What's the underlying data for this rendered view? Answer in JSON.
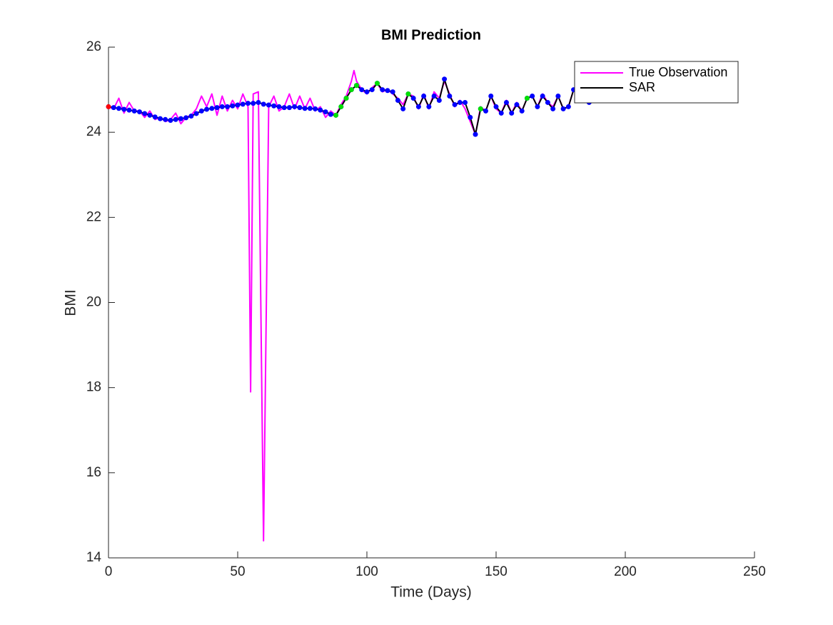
{
  "chart_data": {
    "type": "line",
    "title": "BMI Prediction",
    "x_label": "Time (Days)",
    "y_label": "BMI",
    "xlim": [
      0,
      250
    ],
    "xticks": [
      0,
      50,
      100,
      150,
      200,
      250
    ],
    "ylim": [
      14,
      26
    ],
    "yticks": [
      14,
      16,
      18,
      20,
      22,
      24,
      26
    ],
    "legend": "northeast",
    "grid": false,
    "series": [
      {
        "name": "True Observation",
        "color": "#ff00ff",
        "x": [
          0,
          2,
          4,
          6,
          8,
          10,
          12,
          14,
          16,
          18,
          20,
          22,
          24,
          26,
          28,
          30,
          32,
          34,
          36,
          38,
          40,
          42,
          44,
          46,
          48,
          50,
          52,
          54,
          55,
          56,
          58,
          60,
          62,
          64,
          66,
          68,
          70,
          72,
          74,
          76,
          78,
          80,
          82,
          84,
          86,
          88,
          90,
          92,
          94,
          95,
          96,
          98,
          100,
          102,
          104,
          106,
          108,
          110,
          112,
          114,
          116,
          118,
          120,
          122,
          124,
          126,
          128,
          130,
          132,
          134,
          136,
          138,
          140,
          142,
          144,
          146,
          148,
          150,
          152,
          154,
          156,
          158,
          160,
          162,
          164,
          166,
          168,
          170,
          172,
          174,
          176,
          178,
          180,
          182,
          184,
          186,
          188,
          190,
          192,
          194,
          196,
          198,
          200,
          202
        ],
        "values": [
          24.6,
          24.55,
          24.8,
          24.45,
          24.7,
          24.5,
          24.5,
          24.35,
          24.5,
          24.3,
          24.35,
          24.25,
          24.3,
          24.45,
          24.2,
          24.35,
          24.4,
          24.55,
          24.85,
          24.6,
          24.9,
          24.4,
          24.85,
          24.5,
          24.75,
          24.55,
          24.9,
          24.6,
          17.9,
          24.9,
          24.95,
          14.4,
          24.6,
          24.85,
          24.5,
          24.6,
          24.9,
          24.55,
          24.85,
          24.55,
          24.8,
          24.5,
          24.6,
          24.35,
          24.5,
          24.4,
          24.65,
          24.85,
          25.2,
          25.45,
          25.2,
          25.0,
          24.9,
          25.05,
          25.15,
          24.95,
          25.0,
          24.9,
          24.8,
          24.65,
          24.9,
          24.85,
          24.55,
          24.9,
          24.55,
          24.95,
          24.8,
          25.2,
          24.9,
          24.6,
          24.75,
          24.55,
          24.25,
          23.95,
          24.6,
          24.5,
          24.85,
          24.55,
          24.45,
          24.75,
          24.45,
          24.7,
          24.5,
          24.8,
          24.85,
          24.6,
          24.9,
          24.7,
          24.6,
          24.85,
          24.55,
          24.6,
          25.0,
          25.05,
          24.85,
          24.75,
          24.9,
          24.8,
          24.95,
          24.75,
          24.85,
          24.8,
          24.85,
          24.8
        ]
      },
      {
        "name": "SAR",
        "color": "#000000",
        "marker_color": "#0000ff",
        "x": [
          0,
          2,
          4,
          6,
          8,
          10,
          12,
          14,
          16,
          18,
          20,
          22,
          24,
          26,
          28,
          30,
          32,
          34,
          36,
          38,
          40,
          42,
          44,
          46,
          48,
          50,
          52,
          54,
          56,
          58,
          60,
          62,
          64,
          66,
          68,
          70,
          72,
          74,
          76,
          78,
          80,
          82,
          84,
          86,
          88,
          90,
          92,
          94,
          96,
          98,
          100,
          102,
          104,
          106,
          108,
          110,
          112,
          114,
          116,
          118,
          120,
          122,
          124,
          126,
          128,
          130,
          132,
          134,
          136,
          138,
          140,
          142,
          144,
          146,
          148,
          150,
          152,
          154,
          156,
          158,
          160,
          162,
          164,
          166,
          168,
          170,
          172,
          174,
          176,
          178,
          180,
          182,
          184,
          186,
          188,
          190,
          192,
          194,
          196,
          198,
          200,
          202
        ],
        "values": [
          24.6,
          24.58,
          24.56,
          24.54,
          24.52,
          24.5,
          24.48,
          24.44,
          24.4,
          24.36,
          24.32,
          24.3,
          24.28,
          24.3,
          24.32,
          24.34,
          24.38,
          24.44,
          24.5,
          24.54,
          24.56,
          24.58,
          24.6,
          24.6,
          24.62,
          24.64,
          24.66,
          24.68,
          24.68,
          24.7,
          24.66,
          24.64,
          24.62,
          24.6,
          24.58,
          24.58,
          24.6,
          24.58,
          24.56,
          24.56,
          24.55,
          24.52,
          24.48,
          24.42,
          24.4,
          24.6,
          24.8,
          25.0,
          25.1,
          25.0,
          24.95,
          25.0,
          25.15,
          25.0,
          24.98,
          24.95,
          24.75,
          24.55,
          24.9,
          24.8,
          24.6,
          24.85,
          24.6,
          24.85,
          24.75,
          25.25,
          24.85,
          24.65,
          24.7,
          24.7,
          24.35,
          23.95,
          24.55,
          24.5,
          24.85,
          24.6,
          24.45,
          24.7,
          24.45,
          24.65,
          24.5,
          24.8,
          24.85,
          24.6,
          24.85,
          24.7,
          24.55,
          24.85,
          24.55,
          24.6,
          25.0,
          25.05,
          24.8,
          24.7,
          24.9,
          24.8,
          24.95,
          24.75,
          24.85,
          24.8,
          24.75,
          24.8
        ]
      },
      {
        "color": "#00e000",
        "style": "markers",
        "x": [
          88,
          90,
          92,
          94,
          96,
          104,
          116,
          144,
          162
        ],
        "values": [
          24.4,
          24.6,
          24.8,
          25.0,
          25.1,
          25.15,
          24.9,
          24.55,
          24.8
        ]
      },
      {
        "color": "#ff0000",
        "style": "markers",
        "x": [
          0
        ],
        "values": [
          24.6
        ]
      }
    ]
  }
}
